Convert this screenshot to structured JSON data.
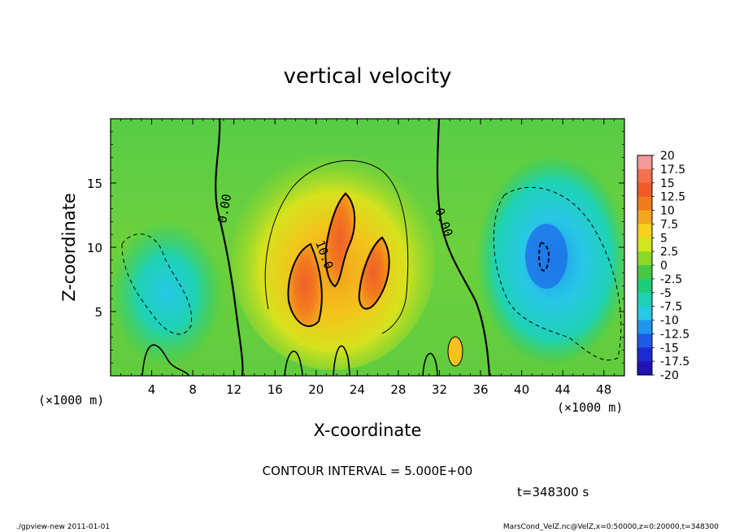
{
  "chart_data": {
    "type": "heatmap",
    "title": "vertical velocity",
    "xlabel": "X-coordinate",
    "ylabel": "Z-coordinate",
    "x_unit_label": "(×1000 m)",
    "y_unit_label": "(×1000 m)",
    "xlim": [
      0,
      50
    ],
    "ylim": [
      0,
      20
    ],
    "x_ticks": [
      4,
      8,
      12,
      16,
      20,
      24,
      28,
      32,
      36,
      40,
      44,
      48
    ],
    "y_ticks": [
      5,
      10,
      15
    ],
    "contour_interval_text": "CONTOUR INTERVAL = 5.000E+00",
    "contour_labels": [
      "0.00",
      "0.00",
      "10.0"
    ],
    "time_text": "t=348300 s",
    "colorbar": {
      "levels": [
        "20",
        "17.5",
        "15",
        "12.5",
        "10",
        "7.5",
        "5",
        "2.5",
        "0",
        "-2.5",
        "-5",
        "-7.5",
        "-10",
        "-12.5",
        "-15",
        "-17.5",
        "-20"
      ],
      "colors": [
        "#f59a9a",
        "#f5704c",
        "#f05a28",
        "#f07c1e",
        "#f2a81a",
        "#f6d21c",
        "#d2e61e",
        "#8cd828",
        "#46c846",
        "#1ecc78",
        "#1ed2b4",
        "#28c8e6",
        "#1e96ee",
        "#1e5ae6",
        "#1e2ad2",
        "#1e14b4",
        "#5a1ea0"
      ]
    },
    "features": [
      {
        "name": "updraft core",
        "x_range": [
          16,
          28
        ],
        "z_range": [
          4,
          15
        ],
        "max_value": 15,
        "sign": "positive"
      },
      {
        "name": "downdraft region east",
        "x_range": [
          37,
          50
        ],
        "z_range": [
          2,
          15
        ],
        "min_value": -10,
        "sign": "negative"
      },
      {
        "name": "downdraft region west",
        "x_range": [
          1,
          9
        ],
        "z_range": [
          2,
          12
        ],
        "min_value": -7.5,
        "sign": "negative"
      }
    ]
  },
  "footer": {
    "left_text": "./gpview-new   2011-01-01",
    "right_text": "MarsCond_VelZ.nc@VelZ,x=0:50000,z=0:20000,t=348300"
  },
  "colors": {
    "background_field": "#5ccc3a",
    "frame": "#000000"
  }
}
